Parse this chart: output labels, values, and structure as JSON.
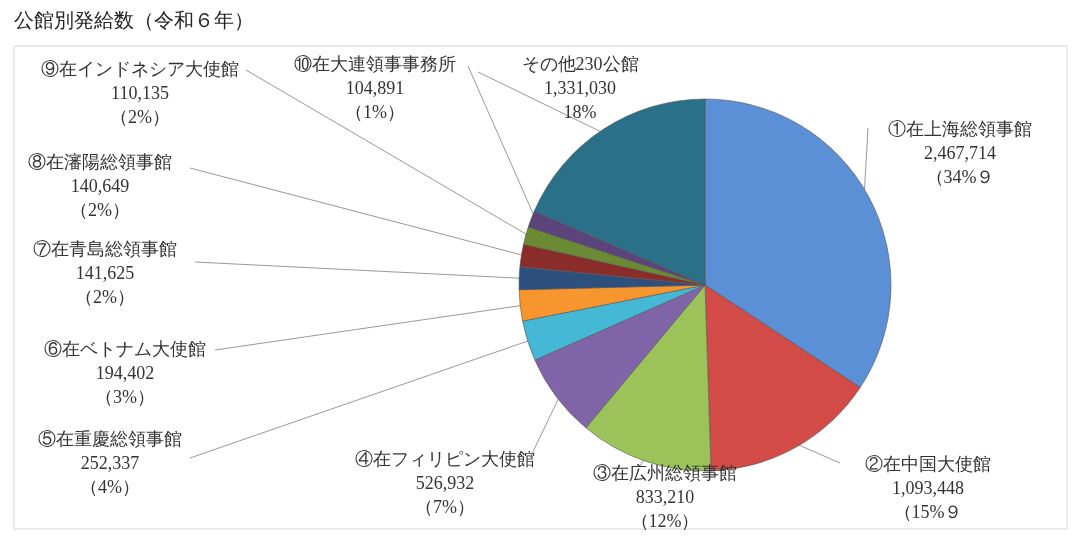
{
  "chart_data": {
    "type": "pie",
    "title": "公館別発給数（令和６年）",
    "categories": [
      "①在上海総領事館",
      "②在中国大使館",
      "③在広州総領事館",
      "④在フィリピン大使館",
      "⑤在重慶総領事館",
      "⑥在ベトナム大使館",
      "⑦在青島総領事館",
      "⑧在瀋陽総領事館",
      "⑨在インドネシア大使館",
      "⑩在大連領事事務所",
      "その他230公館"
    ],
    "values": [
      2467714,
      1093448,
      833210,
      526932,
      252337,
      194402,
      141625,
      140649,
      110135,
      104891,
      1331030
    ],
    "colors": [
      "#5b8fd6",
      "#d24b47",
      "#9cc35a",
      "#8064a8",
      "#45b8d6",
      "#f7962f",
      "#2c4f7e",
      "#8a2d2a",
      "#6b8a34",
      "#5a447a",
      "#2a7088"
    ],
    "value_labels": [
      "2,467,714\n（34%９",
      "1,093,448\n（15%９",
      "833,210\n（12%）",
      "526,932\n（7%）",
      "252,337\n（4%）",
      "194,402\n（3%）",
      "141,625\n（2%）",
      "140,649\n（2%）",
      "110,135\n（2%）",
      "104,891\n（1%）",
      "1,331,030\n18%"
    ]
  }
}
